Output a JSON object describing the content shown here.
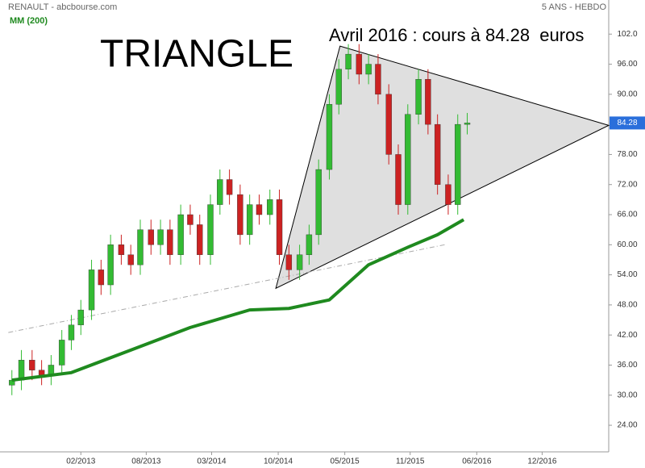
{
  "chart_data": {
    "type": "candlestick",
    "source": "RENAULT - abcbourse.com",
    "period": "5 ANS - HEBDO",
    "ma_label": "MM (200)",
    "pattern_label": "TRIANGLE",
    "annotation": "Avril 2016 : cours à 84.28  euros",
    "up_color": "#33bb33",
    "down_color": "#cc2222",
    "x": [
      2012.5,
      2012.58,
      2012.67,
      2012.75,
      2012.83,
      2012.92,
      2013.0,
      2013.08,
      2013.17,
      2013.25,
      2013.33,
      2013.42,
      2013.5,
      2013.58,
      2013.67,
      2013.75,
      2013.83,
      2013.92,
      2014.0,
      2014.08,
      2014.17,
      2014.25,
      2014.33,
      2014.42,
      2014.5,
      2014.58,
      2014.67,
      2014.75,
      2014.83,
      2014.92,
      2015.0,
      2015.08,
      2015.17,
      2015.25,
      2015.33,
      2015.42,
      2015.5,
      2015.58,
      2015.67,
      2015.75,
      2015.83,
      2015.92,
      2016.0,
      2016.08,
      2016.17,
      2016.25,
      2016.33
    ],
    "open": [
      32,
      33,
      37,
      35,
      34,
      36,
      41,
      44,
      47,
      55,
      52,
      60,
      58,
      56,
      63,
      60,
      63,
      58,
      66,
      64,
      58,
      68,
      73,
      70,
      62,
      68,
      66,
      69,
      58,
      55,
      58,
      62,
      75,
      88,
      95,
      98,
      94,
      96,
      90,
      78,
      68,
      86,
      93,
      84,
      72,
      68,
      84
    ],
    "high": [
      35,
      39,
      39,
      37,
      38,
      43,
      46,
      49,
      57,
      57,
      62,
      62,
      60,
      65,
      65,
      65,
      65,
      68,
      68,
      66,
      70,
      75,
      75,
      72,
      70,
      70,
      71,
      71,
      60,
      60,
      64,
      77,
      90,
      97,
      100,
      100,
      98,
      98,
      92,
      80,
      88,
      95,
      95,
      86,
      74,
      86,
      86.28
    ],
    "low": [
      30,
      31,
      33,
      32,
      32,
      34,
      39,
      42,
      45,
      50,
      50,
      56,
      54,
      54,
      58,
      58,
      56,
      56,
      62,
      56,
      56,
      66,
      68,
      60,
      60,
      64,
      64,
      56,
      53,
      53,
      56,
      60,
      73,
      86,
      93,
      92,
      92,
      88,
      76,
      66,
      66,
      84,
      82,
      70,
      66,
      66,
      82
    ],
    "close": [
      33,
      37,
      35,
      34,
      36,
      41,
      44,
      47,
      55,
      52,
      60,
      58,
      56,
      63,
      60,
      63,
      58,
      66,
      64,
      58,
      68,
      73,
      70,
      62,
      68,
      66,
      69,
      58,
      55,
      58,
      62,
      75,
      88,
      95,
      98,
      94,
      96,
      90,
      78,
      68,
      86,
      93,
      84,
      72,
      68,
      84,
      84.28
    ],
    "ma": {
      "color": "#1f8a1f",
      "x": [
        2012.5,
        2013.0,
        2013.5,
        2014.0,
        2014.5,
        2014.83,
        2015.17,
        2015.5,
        2015.83,
        2016.08,
        2016.3
      ],
      "values": [
        33,
        34.5,
        39,
        43.5,
        47,
        47.3,
        49,
        56,
        59.5,
        62,
        65
      ]
    },
    "triangle": {
      "x": [
        2014.72,
        2015.26,
        2017.52
      ],
      "y": [
        51.3,
        99.6,
        83.8
      ]
    },
    "trendline": {
      "x": [
        2012.47,
        2016.14
      ],
      "y": [
        42.5,
        60.0
      ]
    },
    "xlim": [
      2012.4,
      2017.52
    ],
    "ylim": [
      18.7,
      108.8
    ],
    "xticks": [
      {
        "value": 2013.08,
        "label": "02/2013"
      },
      {
        "value": 2013.63,
        "label": "08/2013"
      },
      {
        "value": 2014.18,
        "label": "03/2014"
      },
      {
        "value": 2014.74,
        "label": "10/2014"
      },
      {
        "value": 2015.3,
        "label": "05/2015"
      },
      {
        "value": 2015.85,
        "label": "11/2015"
      },
      {
        "value": 2016.41,
        "label": "06/2016"
      },
      {
        "value": 2016.96,
        "label": "12/2016"
      }
    ],
    "yticks": [
      {
        "value": 102,
        "label": "102.0"
      },
      {
        "value": 96,
        "label": "96.00"
      },
      {
        "value": 90,
        "label": "90.00"
      },
      {
        "value": 78,
        "label": "78.00"
      },
      {
        "value": 72,
        "label": "72.00"
      },
      {
        "value": 66,
        "label": "66.00"
      },
      {
        "value": 60,
        "label": "60.00"
      },
      {
        "value": 54,
        "label": "54.00"
      },
      {
        "value": 48,
        "label": "48.00"
      },
      {
        "value": 42,
        "label": "42.00"
      },
      {
        "value": 36,
        "label": "36.00"
      },
      {
        "value": 30,
        "label": "30.00"
      },
      {
        "value": 24,
        "label": "24.00"
      }
    ]
  }
}
